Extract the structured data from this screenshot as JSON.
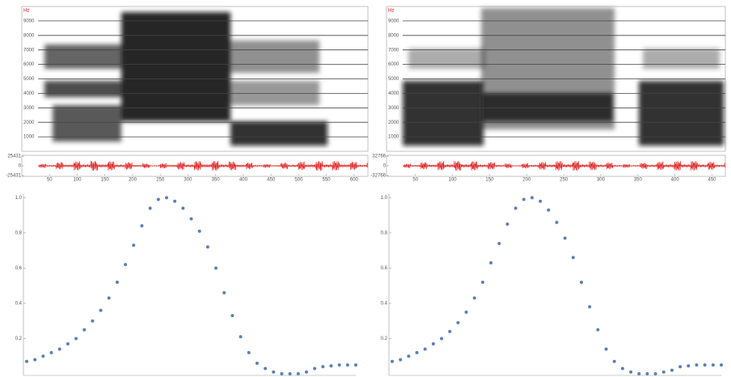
{
  "chart_data": [
    {
      "type": "spectrogram",
      "ylabel": "Hz",
      "ylim": [
        0,
        10000
      ],
      "yticks": [
        1000,
        2000,
        3000,
        4000,
        5000,
        6000,
        7000,
        8000,
        9000
      ]
    },
    {
      "type": "waveform",
      "color": "#e00000",
      "ylim": [
        -25431,
        25431
      ],
      "yticks": [
        -25431,
        0,
        25431
      ],
      "xlim": [
        0,
        625
      ],
      "xticks": [
        50,
        100,
        150,
        200,
        250,
        300,
        350,
        400,
        450,
        500,
        550,
        600
      ]
    },
    {
      "type": "spectrogram",
      "ylabel": "Hz",
      "ylim": [
        0,
        10000
      ],
      "yticks": [
        1000,
        2000,
        3000,
        4000,
        5000,
        6000,
        7000,
        8000,
        9000
      ]
    },
    {
      "type": "waveform",
      "color": "#e00000",
      "ylim": [
        -32766,
        32766
      ],
      "yticks": [
        -32766,
        0,
        32766
      ],
      "xlim": [
        11,
        468
      ],
      "xticks": [
        50,
        100,
        150,
        200,
        250,
        300,
        350,
        400,
        450
      ]
    },
    {
      "type": "scatter",
      "color": "#5b7fb8",
      "xlim": [
        0,
        100
      ],
      "ylim": [
        0,
        1.02
      ],
      "yticks": [
        0.2,
        0.4,
        0.6,
        0.8,
        {
          "value": 1,
          "label": "1.0"
        }
      ],
      "x": [
        0,
        2.5,
        5,
        7.5,
        10,
        12.5,
        15,
        17.5,
        20,
        22.5,
        25,
        27.5,
        30,
        32.5,
        35,
        37.5,
        40,
        42.5,
        45,
        47.5,
        50,
        52.5,
        55,
        57.5,
        60,
        62.5,
        65,
        67.5,
        70,
        72.5,
        75,
        77.5,
        80,
        82.5,
        85,
        87.5,
        90,
        92.5,
        95,
        97.5,
        100
      ],
      "values": [
        0.07,
        0.08,
        0.1,
        0.12,
        0.14,
        0.17,
        0.2,
        0.25,
        0.3,
        0.36,
        0.43,
        0.52,
        0.62,
        0.73,
        0.84,
        0.94,
        0.99,
        1,
        0.98,
        0.94,
        0.88,
        0.81,
        0.72,
        0.6,
        0.46,
        0.33,
        0.21,
        0.12,
        0.06,
        0.03,
        0.01,
        0,
        0,
        0,
        0.01,
        0.03,
        0.04,
        0.045,
        0.05,
        0.05,
        0.05
      ]
    },
    {
      "type": "scatter",
      "color": "#5b7fb8",
      "xlim": [
        0,
        100
      ],
      "ylim": [
        0,
        1.02
      ],
      "yticks": [
        0.2,
        0.4,
        0.6,
        0.8,
        {
          "value": 1,
          "label": "1.0"
        }
      ],
      "x": [
        0,
        2.5,
        5,
        7.5,
        10,
        12.5,
        15,
        17.5,
        20,
        22.5,
        25,
        27.5,
        30,
        32.5,
        35,
        37.5,
        40,
        42.5,
        45,
        47.5,
        50,
        52.5,
        55,
        57.5,
        60,
        62.5,
        65,
        67.5,
        70,
        72.5,
        75,
        77.5,
        80,
        82.5,
        85,
        87.5,
        90,
        92.5,
        95,
        97.5,
        100
      ],
      "values": [
        0.07,
        0.08,
        0.1,
        0.12,
        0.14,
        0.17,
        0.2,
        0.24,
        0.29,
        0.35,
        0.43,
        0.52,
        0.63,
        0.74,
        0.85,
        0.94,
        0.99,
        1,
        0.98,
        0.93,
        0.86,
        0.77,
        0.66,
        0.52,
        0.38,
        0.25,
        0.14,
        0.07,
        0.03,
        0.01,
        0,
        0,
        0,
        0.01,
        0.02,
        0.04,
        0.045,
        0.05,
        0.05,
        0.05,
        0.05
      ]
    }
  ]
}
